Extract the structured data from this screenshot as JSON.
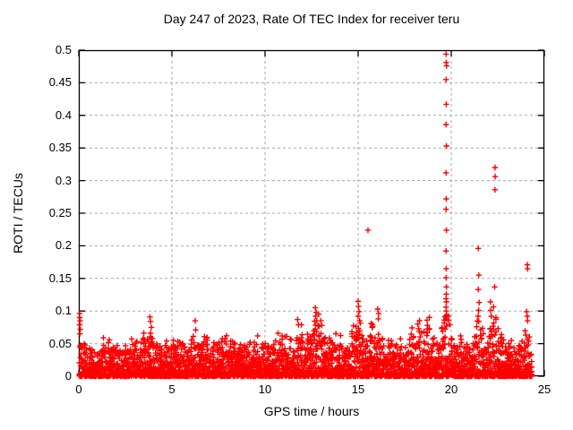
{
  "chart_data": {
    "type": "scatter",
    "title": "Day 247 of 2023, Rate Of TEC Index for receiver teru",
    "xlabel": "GPS time / hours",
    "ylabel": "ROTI / TECUs",
    "xlim": [
      0,
      25
    ],
    "ylim": [
      0,
      0.5
    ],
    "xticks": [
      0,
      5,
      10,
      15,
      20,
      25
    ],
    "ytick_values": [
      0,
      0.05,
      0.1,
      0.15,
      0.2,
      0.25,
      0.3,
      0.35,
      0.4,
      0.45,
      0.5
    ],
    "ytick_labels": [
      "0",
      "0.05",
      "0.1",
      "0.15",
      "0.2",
      "0.25",
      "0.3",
      "0.35",
      "0.4",
      "0.45",
      "0.5"
    ],
    "grid": true,
    "legend_position": "none",
    "marker": "plus",
    "marker_color": "#ff0000",
    "grid_color": "#a8a8a8",
    "axis_color": "#000000",
    "series_name": "ROTI",
    "data_x_range": [
      0.03,
      24.25
    ],
    "baseline_envelope": [
      [
        0.0,
        0.075
      ],
      [
        0.15,
        0.052
      ],
      [
        0.5,
        0.042
      ],
      [
        1.0,
        0.04
      ],
      [
        1.5,
        0.05
      ],
      [
        2.0,
        0.044
      ],
      [
        2.5,
        0.05
      ],
      [
        3.0,
        0.047
      ],
      [
        3.4,
        0.053
      ],
      [
        3.85,
        0.062
      ],
      [
        4.2,
        0.044
      ],
      [
        4.7,
        0.05
      ],
      [
        5.2,
        0.053
      ],
      [
        5.6,
        0.047
      ],
      [
        6.0,
        0.05
      ],
      [
        6.3,
        0.068
      ],
      [
        6.7,
        0.06
      ],
      [
        7.0,
        0.052
      ],
      [
        7.4,
        0.058
      ],
      [
        7.7,
        0.048
      ],
      [
        8.1,
        0.056
      ],
      [
        8.5,
        0.05
      ],
      [
        8.9,
        0.043
      ],
      [
        9.3,
        0.047
      ],
      [
        9.7,
        0.058
      ],
      [
        10.0,
        0.048
      ],
      [
        10.4,
        0.053
      ],
      [
        10.75,
        0.063
      ],
      [
        11.1,
        0.057
      ],
      [
        11.45,
        0.047
      ],
      [
        11.8,
        0.066
      ],
      [
        12.2,
        0.052
      ],
      [
        12.7,
        0.078
      ],
      [
        13.05,
        0.068
      ],
      [
        13.4,
        0.052
      ],
      [
        13.8,
        0.047
      ],
      [
        14.2,
        0.043
      ],
      [
        14.6,
        0.052
      ],
      [
        15.0,
        0.082
      ],
      [
        15.35,
        0.07
      ],
      [
        15.7,
        0.066
      ],
      [
        16.1,
        0.072
      ],
      [
        16.45,
        0.05
      ],
      [
        16.8,
        0.057
      ],
      [
        17.2,
        0.05
      ],
      [
        17.6,
        0.046
      ],
      [
        18.0,
        0.06
      ],
      [
        18.4,
        0.066
      ],
      [
        18.75,
        0.072
      ],
      [
        19.1,
        0.05
      ],
      [
        19.45,
        0.068
      ],
      [
        19.75,
        0.105
      ],
      [
        20.05,
        0.055
      ],
      [
        20.35,
        0.046
      ],
      [
        20.65,
        0.06
      ],
      [
        20.95,
        0.047
      ],
      [
        21.2,
        0.052
      ],
      [
        21.5,
        0.082
      ],
      [
        21.8,
        0.052
      ],
      [
        22.15,
        0.082
      ],
      [
        22.45,
        0.072
      ],
      [
        22.75,
        0.062
      ],
      [
        23.05,
        0.047
      ],
      [
        23.4,
        0.052
      ],
      [
        23.7,
        0.057
      ],
      [
        24.0,
        0.072
      ],
      [
        24.25,
        0.05
      ]
    ],
    "outliers": [
      [
        0.05,
        0.096
      ],
      [
        0.05,
        0.09
      ],
      [
        0.07,
        0.085
      ],
      [
        0.05,
        0.079
      ],
      [
        0.08,
        0.072
      ],
      [
        0.06,
        0.065
      ],
      [
        3.82,
        0.091
      ],
      [
        3.85,
        0.084
      ],
      [
        3.9,
        0.075
      ],
      [
        3.85,
        0.066
      ],
      [
        3.95,
        0.058
      ],
      [
        6.25,
        0.085
      ],
      [
        6.28,
        0.071
      ],
      [
        9.6,
        0.062
      ],
      [
        10.7,
        0.066
      ],
      [
        11.75,
        0.087
      ],
      [
        11.8,
        0.079
      ],
      [
        12.7,
        0.105
      ],
      [
        12.75,
        0.098
      ],
      [
        12.72,
        0.092
      ],
      [
        12.78,
        0.085
      ],
      [
        13.0,
        0.085
      ],
      [
        13.05,
        0.078
      ],
      [
        15.0,
        0.115
      ],
      [
        15.02,
        0.107
      ],
      [
        15.05,
        0.099
      ],
      [
        15.0,
        0.092
      ],
      [
        15.08,
        0.085
      ],
      [
        15.53,
        0.224
      ],
      [
        15.7,
        0.081
      ],
      [
        15.75,
        0.075
      ],
      [
        16.05,
        0.103
      ],
      [
        16.1,
        0.096
      ],
      [
        16.08,
        0.088
      ],
      [
        18.2,
        0.08
      ],
      [
        18.25,
        0.073
      ],
      [
        18.7,
        0.086
      ],
      [
        18.72,
        0.078
      ],
      [
        19.72,
        0.494
      ],
      [
        19.73,
        0.481
      ],
      [
        19.75,
        0.476
      ],
      [
        19.72,
        0.455
      ],
      [
        19.73,
        0.417
      ],
      [
        19.72,
        0.386
      ],
      [
        19.74,
        0.353
      ],
      [
        19.72,
        0.312
      ],
      [
        19.73,
        0.272
      ],
      [
        19.72,
        0.256
      ],
      [
        19.74,
        0.224
      ],
      [
        19.72,
        0.192
      ],
      [
        19.73,
        0.165
      ],
      [
        19.72,
        0.151
      ],
      [
        19.74,
        0.137
      ],
      [
        19.73,
        0.126
      ],
      [
        19.72,
        0.119
      ],
      [
        19.74,
        0.114
      ],
      [
        19.72,
        0.106
      ],
      [
        19.73,
        0.1
      ],
      [
        19.75,
        0.094
      ],
      [
        19.72,
        0.088
      ],
      [
        20.5,
        0.062
      ],
      [
        21.45,
        0.196
      ],
      [
        21.48,
        0.155
      ],
      [
        21.45,
        0.133
      ],
      [
        21.5,
        0.113
      ],
      [
        21.47,
        0.101
      ],
      [
        21.44,
        0.092
      ],
      [
        22.1,
        0.114
      ],
      [
        22.12,
        0.101
      ],
      [
        22.15,
        0.092
      ],
      [
        22.35,
        0.32
      ],
      [
        22.36,
        0.306
      ],
      [
        22.35,
        0.286
      ],
      [
        22.33,
        0.137
      ],
      [
        22.4,
        0.09
      ],
      [
        22.7,
        0.064
      ],
      [
        24.08,
        0.171
      ],
      [
        24.1,
        0.165
      ],
      [
        24.05,
        0.099
      ],
      [
        24.08,
        0.092
      ],
      [
        24.1,
        0.085
      ]
    ]
  }
}
